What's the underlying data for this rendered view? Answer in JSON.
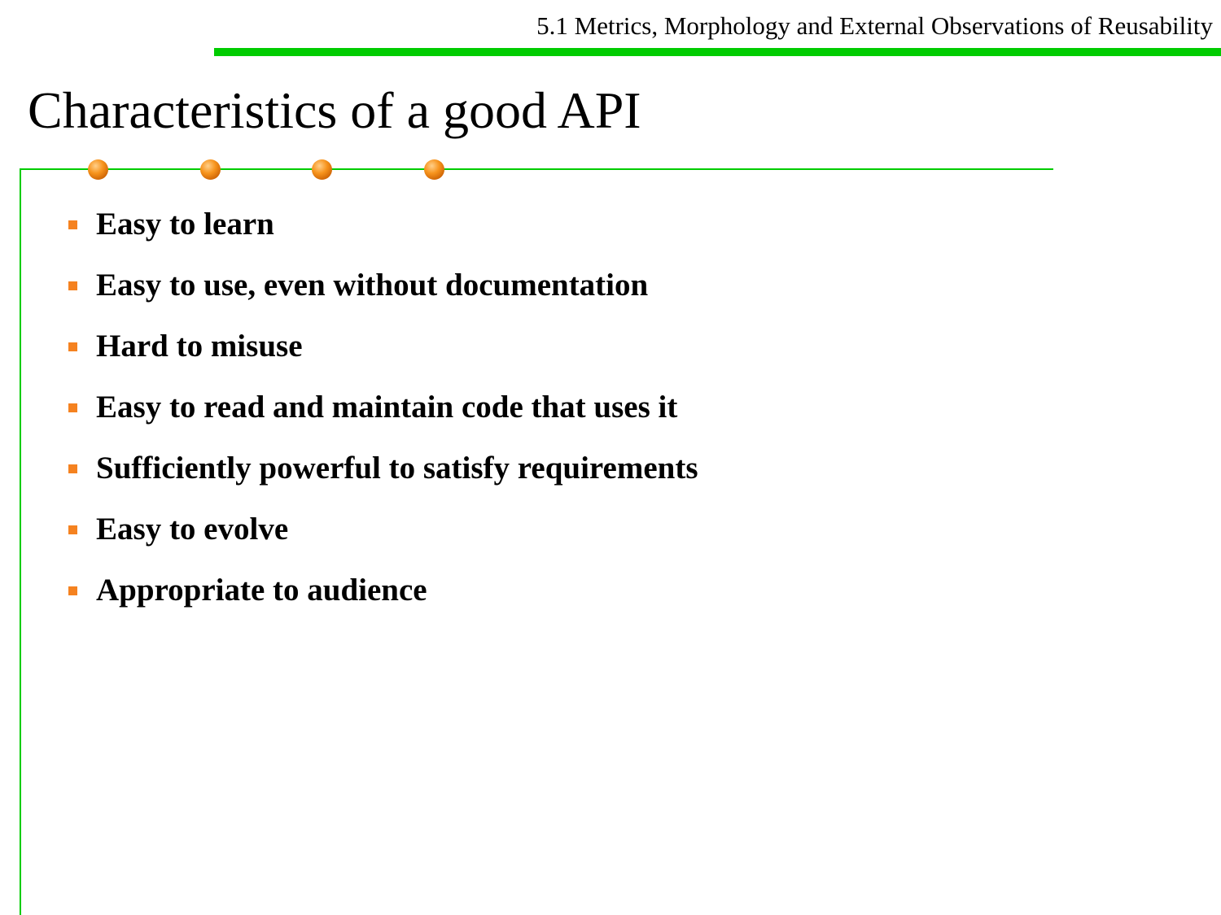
{
  "header": {
    "section_title": "5.1 Metrics, Morphology and External Observations of Reusability",
    "accent_color": "#00cc00"
  },
  "slide": {
    "title": "Characteristics of a good API",
    "bullet_color": "#f58220",
    "bullets": [
      "Easy to learn",
      "Easy to use, even without documentation",
      "Hard to misuse",
      "Easy to read and maintain code that uses it",
      "Sufficiently powerful to satisfy requirements",
      "Easy to evolve",
      "Appropriate to audience"
    ]
  }
}
